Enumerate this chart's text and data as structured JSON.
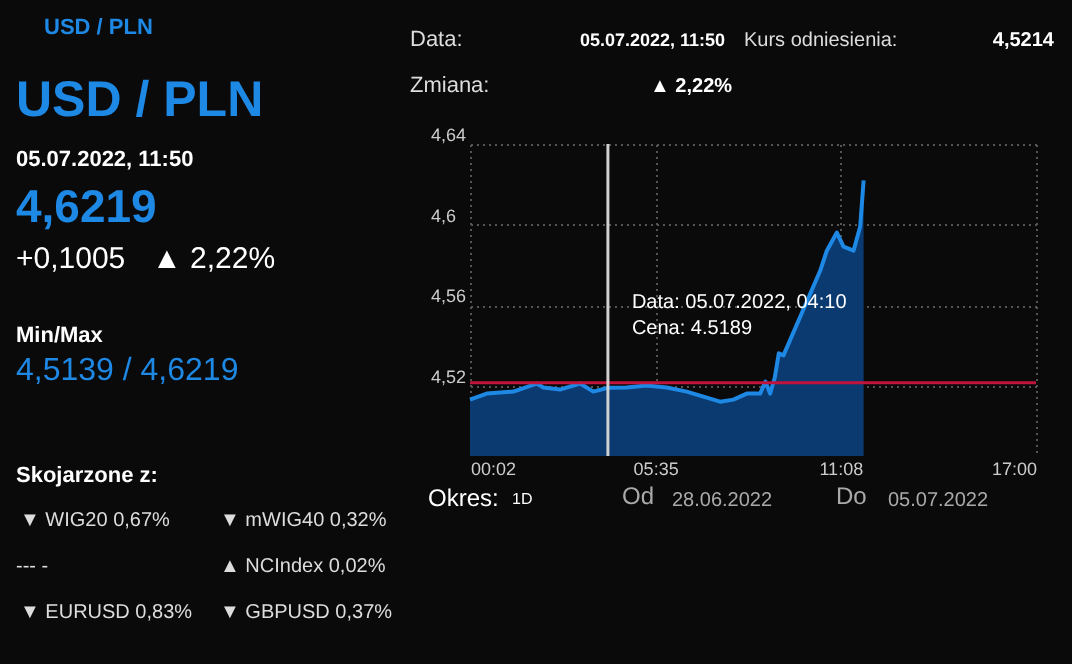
{
  "chart_data": {
    "type": "area",
    "x": [
      0.033,
      0.533,
      1.333,
      2.032,
      2.232,
      2.731,
      3.331,
      3.731,
      4.167,
      4.73,
      5.33,
      5.93,
      6.53,
      7.13,
      7.53,
      7.93,
      8.33,
      8.73,
      8.89,
      9.03,
      9.17,
      9.29,
      9.43,
      10.53,
      10.73,
      11.03,
      11.23,
      11.53,
      11.73,
      11.833
    ],
    "series": [
      {
        "color": "#1e88e5",
        "values": [
          4.513,
          4.516,
          4.517,
          4.521,
          4.519,
          4.518,
          4.521,
          4.517,
          4.5189,
          4.519,
          4.52,
          4.519,
          4.517,
          4.514,
          4.512,
          4.513,
          4.516,
          4.516,
          4.522,
          4.516,
          4.524,
          4.536,
          4.535,
          4.577,
          4.587,
          4.596,
          4.589,
          4.587,
          4.599,
          4.6219
        ]
      }
    ],
    "xlim": [
      0.033,
      17
    ],
    "xticks": [
      {
        "value": 0.033,
        "label": "00:02"
      },
      {
        "value": 5.583,
        "label": "05:35"
      },
      {
        "value": 11.133,
        "label": "11:08"
      },
      {
        "value": 17,
        "label": "17:00"
      }
    ],
    "ylim": [
      4.485,
      4.64
    ],
    "yticks": [
      {
        "value": 4.52,
        "label": "4,52"
      },
      {
        "value": 4.56,
        "label": "4,56"
      },
      {
        "value": 4.6,
        "label": "4,6"
      },
      {
        "value": 4.64,
        "label": "4,64"
      }
    ],
    "grid": true,
    "ref_lines": [
      {
        "axis": "y",
        "value": 4.5214,
        "color": "#c0143c"
      },
      {
        "axis": "x",
        "value": 4.167,
        "color": "#d0d0d0"
      }
    ],
    "annotations": [
      "USD / PLN",
      "USD / PLN",
      "05.07.2022, 11:50",
      "4,6219",
      "+0,1005",
      "▲ 2,22%",
      "Min/Max",
      "4,5139 / 4,6219",
      "Skojarzone z:",
      "▼ WIG20 0,67%",
      "▼ mWIG40 0,32%",
      "--- -",
      "▲ NCIndex 0,02%",
      "▼ EURUSD 0,83%",
      "▼ GBPUSD 0,37%",
      "Data:",
      "05.07.2022, 11:50",
      "Kurs odniesienia:",
      "4,5214",
      "Zmiana:",
      "▲ 2,22%",
      {
        "text": "Data: 05.07.2022, 04:10\nCena: 4.5189",
        "x": 4.167,
        "y": 4.5189
      },
      "Okres:",
      "1D",
      "Od",
      "28.06.2022",
      "Do",
      "05.07.2022"
    ]
  }
}
